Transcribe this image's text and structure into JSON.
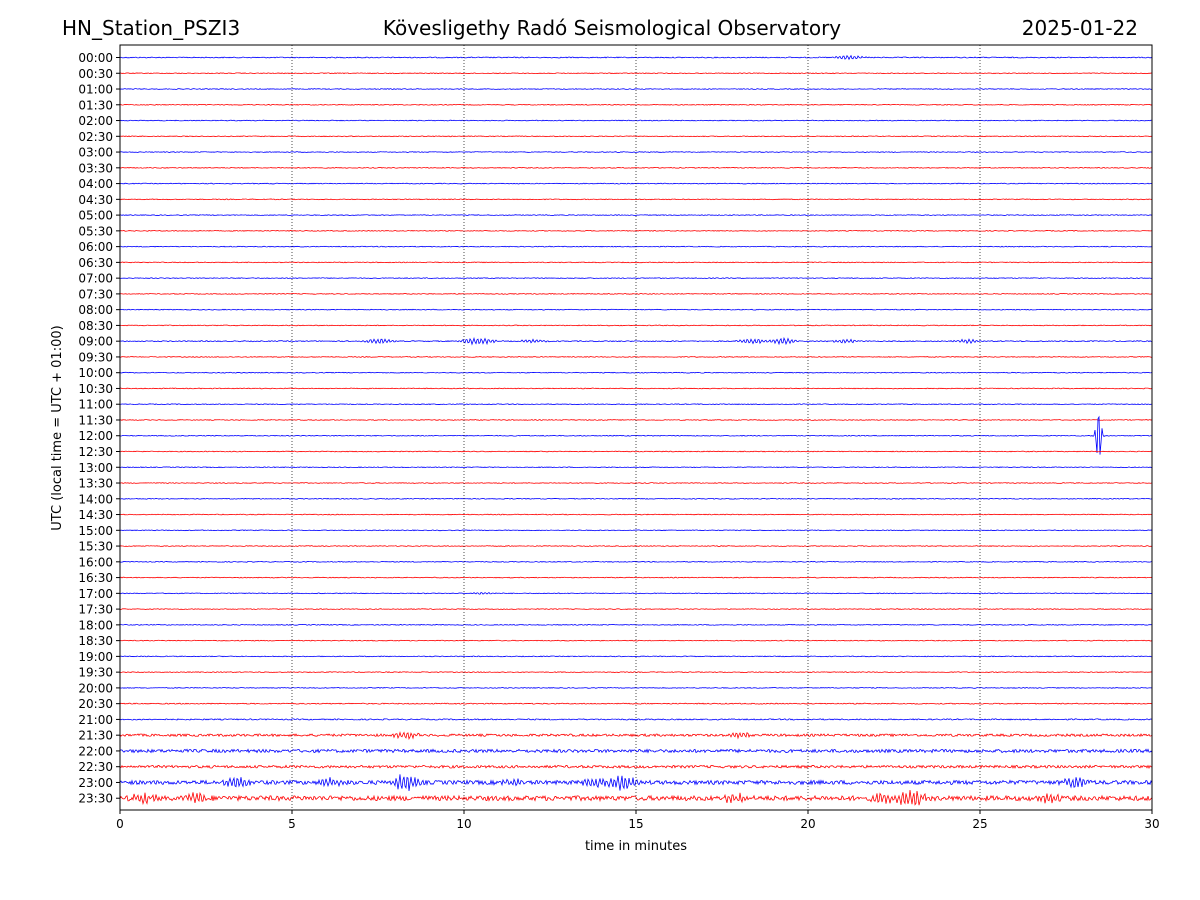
{
  "header": {
    "station": "HN_Station_PSZI3",
    "observatory": "Kövesligethy Radó Seismological Observatory",
    "date": "2025-01-22"
  },
  "colors": {
    "even_trace": "#0000ff",
    "odd_trace": "#ff0000",
    "grid": "#000000",
    "background": "#ffffff"
  },
  "chart_data": {
    "type": "line",
    "title": "Kövesligethy Radó Seismological Observatory",
    "xlabel": "time in minutes",
    "ylabel": "UTC (local time = UTC + 01:00)",
    "xlim": [
      0,
      30
    ],
    "xticks": [
      "0",
      "5",
      "10",
      "15",
      "20",
      "25",
      "30"
    ],
    "vertical_grid_at": [
      5,
      10,
      15,
      20,
      25
    ],
    "grid": "vertical dotted",
    "legend": "none",
    "trace_colors": [
      "blue",
      "red"
    ],
    "rows": [
      "00:00",
      "00:30",
      "01:00",
      "01:30",
      "02:00",
      "02:30",
      "03:00",
      "03:30",
      "04:00",
      "04:30",
      "05:00",
      "05:30",
      "06:00",
      "06:30",
      "07:00",
      "07:30",
      "08:00",
      "08:30",
      "09:00",
      "09:30",
      "10:00",
      "10:30",
      "11:00",
      "11:30",
      "12:00",
      "12:30",
      "13:00",
      "13:30",
      "14:00",
      "14:30",
      "15:00",
      "15:30",
      "16:00",
      "16:30",
      "17:00",
      "17:30",
      "18:00",
      "18:30",
      "19:00",
      "19:30",
      "20:00",
      "20:30",
      "21:00",
      "21:30",
      "22:00",
      "22:30",
      "23:00",
      "23:30"
    ],
    "noise_level": [
      0.5,
      0.4,
      0.4,
      0.4,
      0.4,
      0.4,
      0.4,
      0.4,
      0.4,
      0.4,
      0.4,
      0.4,
      0.4,
      0.4,
      0.4,
      0.4,
      0.4,
      0.4,
      0.5,
      0.4,
      0.4,
      0.4,
      0.4,
      0.4,
      0.4,
      0.4,
      0.4,
      0.4,
      0.4,
      0.4,
      0.4,
      0.4,
      0.4,
      0.4,
      0.4,
      0.4,
      0.4,
      0.4,
      0.4,
      0.4,
      0.4,
      0.5,
      0.6,
      1.2,
      1.6,
      1.3,
      2.0,
      2.4
    ],
    "events": [
      {
        "row": "00:00",
        "minute": 21.2,
        "amplitude": 2
      },
      {
        "row": "09:00",
        "minute": 7.5,
        "amplitude": 2.5
      },
      {
        "row": "09:00",
        "minute": 10.2,
        "amplitude": 2
      },
      {
        "row": "09:00",
        "minute": 10.6,
        "amplitude": 2
      },
      {
        "row": "09:00",
        "minute": 12.0,
        "amplitude": 1.5
      },
      {
        "row": "09:00",
        "minute": 18.4,
        "amplitude": 2.5
      },
      {
        "row": "09:00",
        "minute": 19.3,
        "amplitude": 3
      },
      {
        "row": "09:00",
        "minute": 21.1,
        "amplitude": 1.5
      },
      {
        "row": "09:00",
        "minute": 24.7,
        "amplitude": 2
      },
      {
        "row": "12:00",
        "minute": 28.45,
        "amplitude": 28
      },
      {
        "row": "17:00",
        "minute": 10.5,
        "amplitude": 1
      },
      {
        "row": "21:30",
        "minute": 8.3,
        "amplitude": 3
      },
      {
        "row": "21:30",
        "minute": 18.0,
        "amplitude": 2.5
      },
      {
        "row": "23:00",
        "minute": 3.4,
        "amplitude": 4
      },
      {
        "row": "23:00",
        "minute": 6.2,
        "amplitude": 4
      },
      {
        "row": "23:00",
        "minute": 8.3,
        "amplitude": 8
      },
      {
        "row": "23:00",
        "minute": 11.4,
        "amplitude": 3
      },
      {
        "row": "23:00",
        "minute": 13.8,
        "amplitude": 4
      },
      {
        "row": "23:00",
        "minute": 14.6,
        "amplitude": 7
      },
      {
        "row": "23:00",
        "minute": 27.8,
        "amplitude": 5
      },
      {
        "row": "23:30",
        "minute": 0.7,
        "amplitude": 4
      },
      {
        "row": "23:30",
        "minute": 2.2,
        "amplitude": 4
      },
      {
        "row": "23:30",
        "minute": 17.9,
        "amplitude": 4
      },
      {
        "row": "23:30",
        "minute": 22.2,
        "amplitude": 4
      },
      {
        "row": "23:30",
        "minute": 23.0,
        "amplitude": 8
      },
      {
        "row": "23:30",
        "minute": 27.0,
        "amplitude": 4
      }
    ]
  }
}
